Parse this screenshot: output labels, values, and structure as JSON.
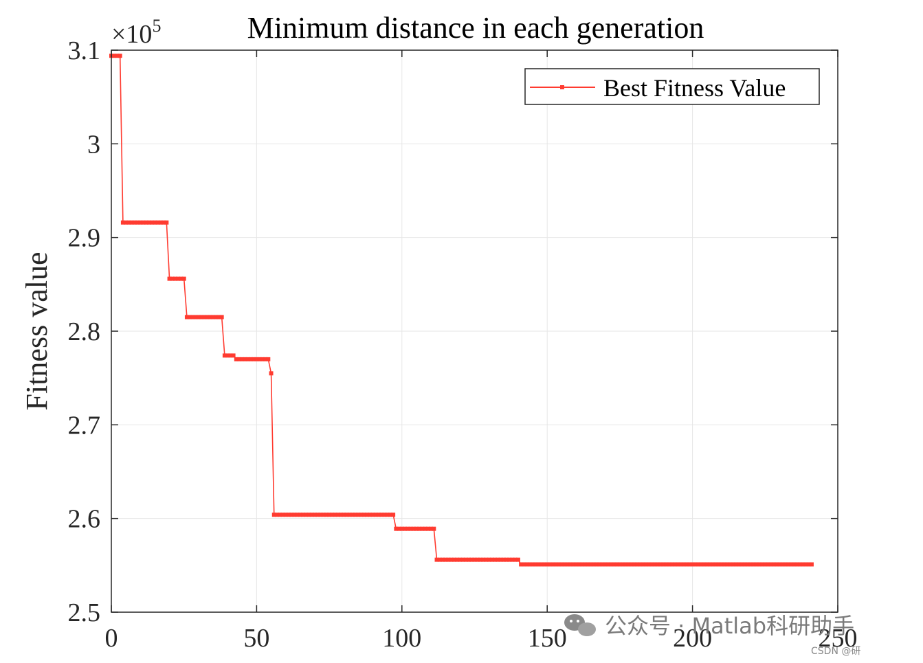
{
  "chart_data": {
    "type": "line",
    "title": "Minimum distance in each generation",
    "xlabel": "",
    "ylabel": "Fitness value",
    "y_exponent_label": "×10",
    "y_exponent_power": "5",
    "xlim": [
      0,
      250
    ],
    "ylim": [
      2.5,
      3.1
    ],
    "x_ticks": [
      0,
      50,
      100,
      150,
      200,
      250
    ],
    "y_ticks": [
      2.5,
      2.6,
      2.7,
      2.8,
      2.9,
      3,
      3.1
    ],
    "x_tick_labels": [
      "0",
      "50",
      "100",
      "150",
      "200",
      "250"
    ],
    "y_tick_labels": [
      "2.5",
      "2.6",
      "2.7",
      "2.8",
      "2.9",
      "3",
      "3.1"
    ],
    "grid": true,
    "legend": {
      "position": "top-right",
      "entries": [
        "Best Fitness Value"
      ]
    },
    "series": [
      {
        "name": "Best Fitness Value",
        "color": "#ff3b30",
        "steps": [
          {
            "from": 0,
            "to": 3,
            "y": 3.094
          },
          {
            "from": 4,
            "to": 19,
            "y": 2.916
          },
          {
            "from": 20,
            "to": 25,
            "y": 2.856
          },
          {
            "from": 26,
            "to": 38,
            "y": 2.815
          },
          {
            "from": 39,
            "to": 42,
            "y": 2.774
          },
          {
            "from": 43,
            "to": 54,
            "y": 2.77
          },
          {
            "from": 55,
            "to": 55,
            "y": 2.755
          },
          {
            "from": 56,
            "to": 97,
            "y": 2.604
          },
          {
            "from": 98,
            "to": 111,
            "y": 2.589
          },
          {
            "from": 112,
            "to": 140,
            "y": 2.556
          },
          {
            "from": 141,
            "to": 241,
            "y": 2.551
          }
        ]
      }
    ]
  },
  "watermark": {
    "text": "公众号 · Matlab科研助手",
    "small": "CSDN @研"
  }
}
